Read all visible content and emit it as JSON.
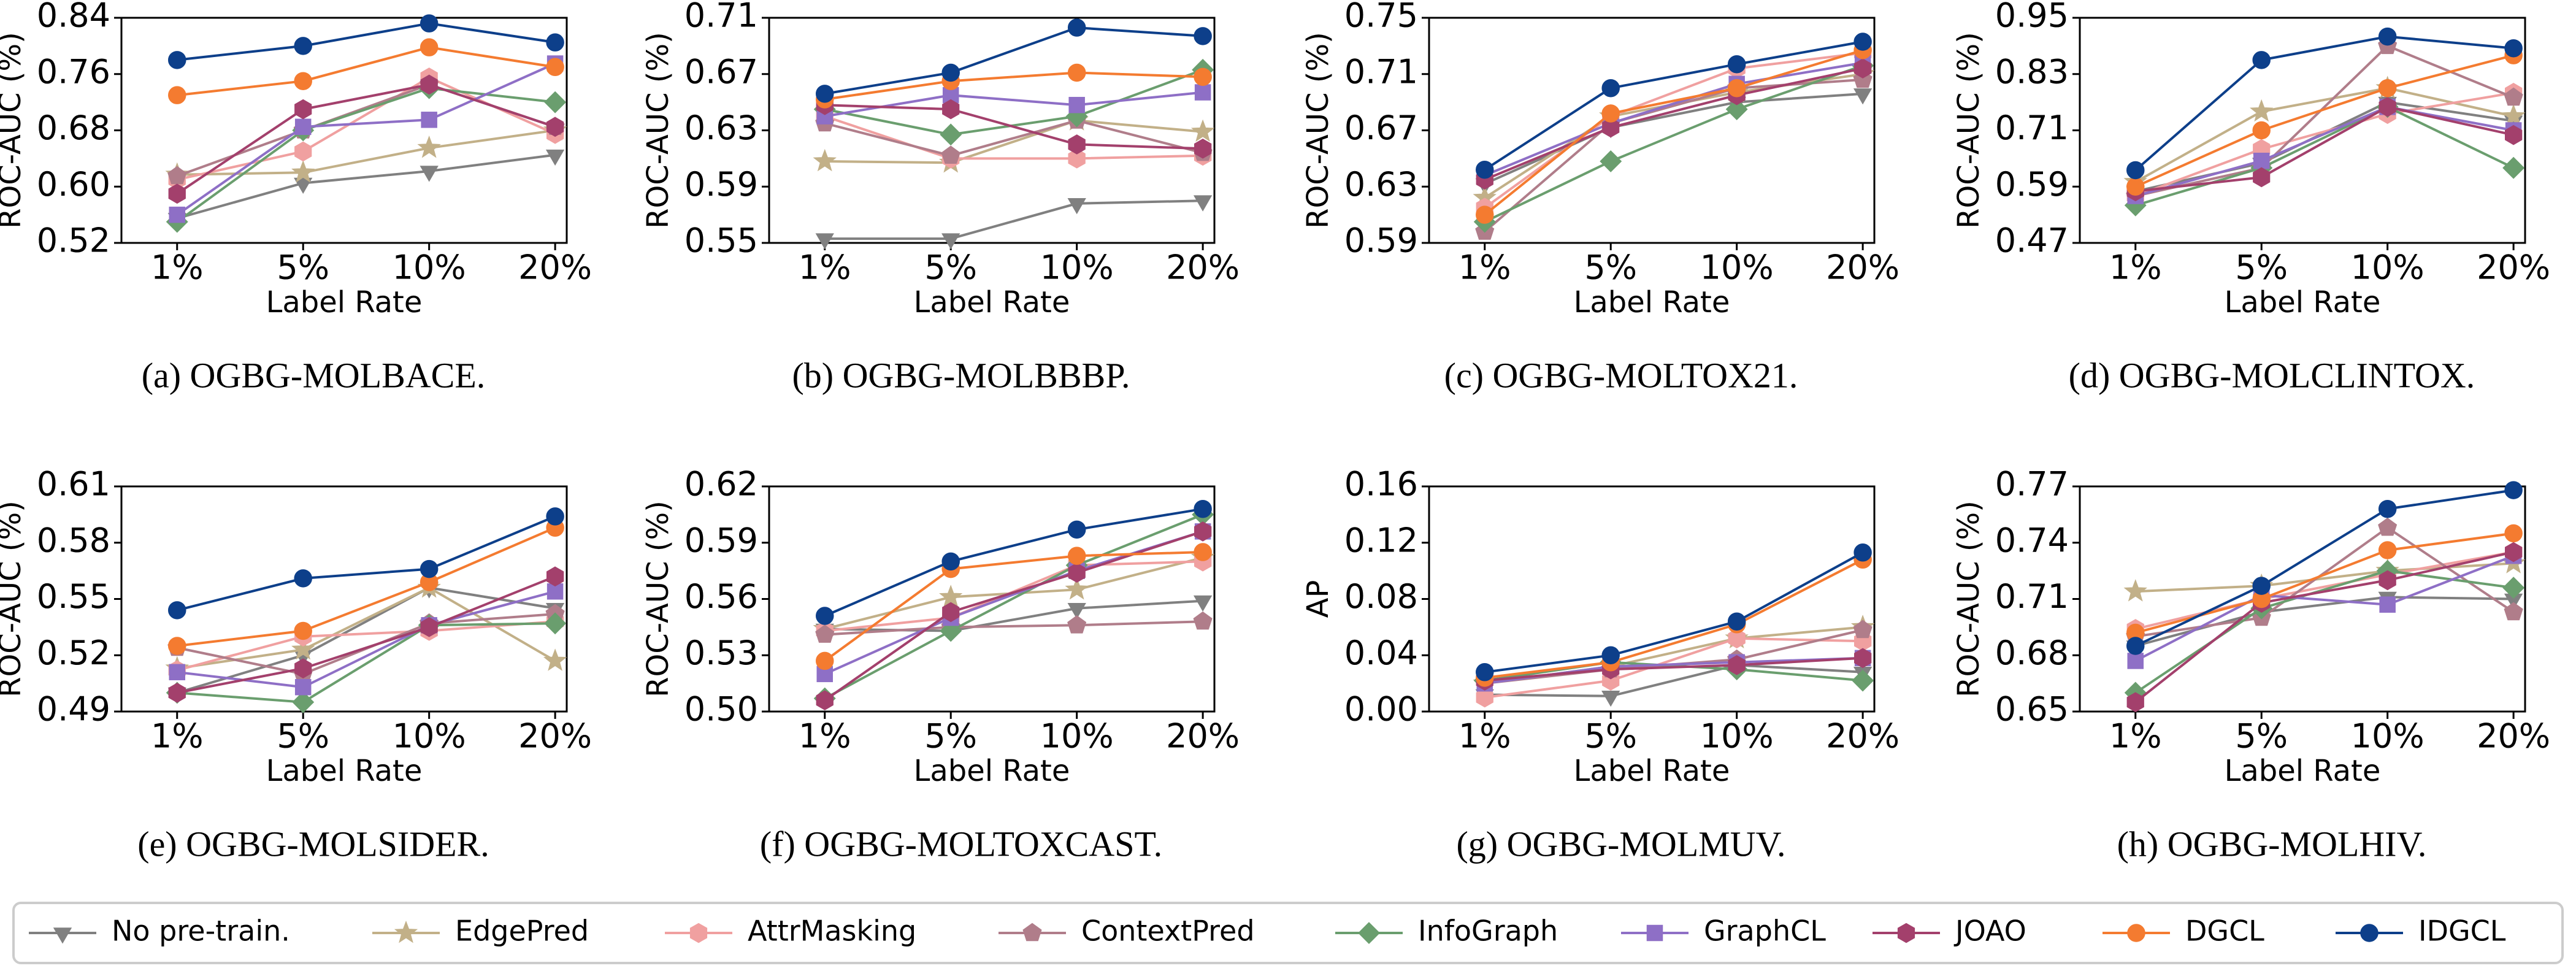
{
  "chart_data": [
    {
      "type": "line",
      "caption": "(a) OGBG-MOLBACE.",
      "x_label": "Label Rate",
      "y_label": "ROC-AUC (%)",
      "categories": [
        "1%",
        "5%",
        "10%",
        "20%"
      ],
      "ylim": [
        0.52,
        0.84
      ],
      "yticks": [
        0.52,
        {
          "value": 0.6,
          "label": "0.60"
        },
        0.68,
        0.76,
        0.84
      ],
      "series": [
        {
          "name": "No pre-train.",
          "color": "#808080",
          "marker": "triangle-down",
          "values": [
            0.555,
            0.605,
            0.622,
            0.645
          ]
        },
        {
          "name": "EdgePred",
          "color": "#c2b088",
          "marker": "star",
          "values": [
            0.617,
            0.62,
            0.655,
            0.68
          ]
        },
        {
          "name": "AttrMasking",
          "color": "#f0a0a0",
          "marker": "hexagon",
          "values": [
            0.61,
            0.65,
            0.755,
            0.675
          ]
        },
        {
          "name": "ContextPred",
          "color": "#b07d8a",
          "marker": "pentagon",
          "values": [
            0.615,
            0.68,
            0.745,
            0.685
          ]
        },
        {
          "name": "InfoGraph",
          "color": "#6a9e6e",
          "marker": "diamond",
          "values": [
            0.55,
            0.68,
            0.74,
            0.72
          ]
        },
        {
          "name": "GraphCL",
          "color": "#8e6fc6",
          "marker": "square",
          "values": [
            0.56,
            0.685,
            0.695,
            0.775
          ]
        },
        {
          "name": "JOAO",
          "color": "#a3406c",
          "marker": "hexagon",
          "values": [
            0.59,
            0.71,
            0.745,
            0.685
          ]
        },
        {
          "name": "DGCL",
          "color": "#f47b30",
          "marker": "circle",
          "values": [
            0.73,
            0.75,
            0.798,
            0.77
          ]
        },
        {
          "name": "IDGCL",
          "color": "#0d3f8a",
          "marker": "circle",
          "values": [
            0.78,
            0.8,
            0.832,
            0.805
          ]
        }
      ]
    },
    {
      "type": "line",
      "caption": "(b) OGBG-MOLBBBP.",
      "x_label": "Label Rate",
      "y_label": "ROC-AUC (%)",
      "categories": [
        "1%",
        "5%",
        "10%",
        "20%"
      ],
      "ylim": [
        0.55,
        0.71
      ],
      "yticks": [
        0.55,
        0.59,
        0.63,
        0.67,
        0.71
      ],
      "series": [
        {
          "name": "No pre-train.",
          "color": "#808080",
          "marker": "triangle-down",
          "values": [
            0.553,
            0.553,
            0.578,
            0.58
          ]
        },
        {
          "name": "EdgePred",
          "color": "#c2b088",
          "marker": "star",
          "values": [
            0.608,
            0.607,
            0.637,
            0.629
          ]
        },
        {
          "name": "AttrMasking",
          "color": "#f0a0a0",
          "marker": "hexagon",
          "values": [
            0.64,
            0.61,
            0.61,
            0.612
          ]
        },
        {
          "name": "ContextPred",
          "color": "#b07d8a",
          "marker": "pentagon",
          "values": [
            0.635,
            0.612,
            0.637,
            0.614
          ]
        },
        {
          "name": "InfoGraph",
          "color": "#6a9e6e",
          "marker": "diamond",
          "values": [
            0.645,
            0.627,
            0.64,
            0.673
          ]
        },
        {
          "name": "GraphCL",
          "color": "#8e6fc6",
          "marker": "square",
          "values": [
            0.64,
            0.655,
            0.648,
            0.657
          ]
        },
        {
          "name": "JOAO",
          "color": "#a3406c",
          "marker": "hexagon",
          "values": [
            0.648,
            0.645,
            0.62,
            0.617
          ]
        },
        {
          "name": "DGCL",
          "color": "#f47b30",
          "marker": "circle",
          "values": [
            0.652,
            0.665,
            0.671,
            0.668
          ]
        },
        {
          "name": "IDGCL",
          "color": "#0d3f8a",
          "marker": "circle",
          "values": [
            0.656,
            0.671,
            0.703,
            0.697
          ]
        }
      ]
    },
    {
      "type": "line",
      "caption": "(c) OGBG-MOLTOX21.",
      "x_label": "Label Rate",
      "y_label": "ROC-AUC (%)",
      "categories": [
        "1%",
        "5%",
        "10%",
        "20%"
      ],
      "ylim": [
        0.59,
        0.75
      ],
      "yticks": [
        0.59,
        0.63,
        0.67,
        0.71,
        0.75
      ],
      "series": [
        {
          "name": "No pre-train.",
          "color": "#808080",
          "marker": "triangle-down",
          "values": [
            0.632,
            0.672,
            0.69,
            0.696
          ]
        },
        {
          "name": "EdgePred",
          "color": "#c2b088",
          "marker": "star",
          "values": [
            0.622,
            0.68,
            0.697,
            0.71
          ]
        },
        {
          "name": "AttrMasking",
          "color": "#f0a0a0",
          "marker": "hexagon",
          "values": [
            0.615,
            0.68,
            0.714,
            0.725
          ]
        },
        {
          "name": "ContextPred",
          "color": "#b07d8a",
          "marker": "pentagon",
          "values": [
            0.598,
            0.675,
            0.7,
            0.706
          ]
        },
        {
          "name": "InfoGraph",
          "color": "#6a9e6e",
          "marker": "diamond",
          "values": [
            0.605,
            0.648,
            0.685,
            0.716
          ]
        },
        {
          "name": "GraphCL",
          "color": "#8e6fc6",
          "marker": "square",
          "values": [
            0.638,
            0.675,
            0.703,
            0.718
          ]
        },
        {
          "name": "JOAO",
          "color": "#a3406c",
          "marker": "hexagon",
          "values": [
            0.635,
            0.672,
            0.695,
            0.714
          ]
        },
        {
          "name": "DGCL",
          "color": "#f47b30",
          "marker": "circle",
          "values": [
            0.61,
            0.682,
            0.7,
            0.727
          ]
        },
        {
          "name": "IDGCL",
          "color": "#0d3f8a",
          "marker": "circle",
          "values": [
            0.642,
            0.7,
            0.717,
            0.733
          ]
        }
      ]
    },
    {
      "type": "line",
      "caption": "(d) OGBG-MOLCLINTOX.",
      "x_label": "Label Rate",
      "y_label": "ROC-AUC (%)",
      "categories": [
        "1%",
        "5%",
        "10%",
        "20%"
      ],
      "ylim": [
        0.47,
        0.95
      ],
      "yticks": [
        0.47,
        0.59,
        0.71,
        0.83,
        0.95
      ],
      "series": [
        {
          "name": "No pre-train.",
          "color": "#808080",
          "marker": "triangle-down",
          "values": [
            0.58,
            0.64,
            0.77,
            0.73
          ]
        },
        {
          "name": "EdgePred",
          "color": "#c2b088",
          "marker": "star",
          "values": [
            0.6,
            0.75,
            0.8,
            0.74
          ]
        },
        {
          "name": "AttrMasking",
          "color": "#f0a0a0",
          "marker": "hexagon",
          "values": [
            0.57,
            0.67,
            0.745,
            0.79
          ]
        },
        {
          "name": "ContextPred",
          "color": "#b07d8a",
          "marker": "pentagon",
          "values": [
            0.57,
            0.63,
            0.89,
            0.78
          ]
        },
        {
          "name": "InfoGraph",
          "color": "#6a9e6e",
          "marker": "diamond",
          "values": [
            0.55,
            0.63,
            0.76,
            0.63
          ]
        },
        {
          "name": "GraphCL",
          "color": "#8e6fc6",
          "marker": "square",
          "values": [
            0.57,
            0.645,
            0.76,
            0.71
          ]
        },
        {
          "name": "JOAO",
          "color": "#a3406c",
          "marker": "hexagon",
          "values": [
            0.58,
            0.61,
            0.76,
            0.7
          ]
        },
        {
          "name": "DGCL",
          "color": "#f47b30",
          "marker": "circle",
          "values": [
            0.59,
            0.71,
            0.8,
            0.87
          ]
        },
        {
          "name": "IDGCL",
          "color": "#0d3f8a",
          "marker": "circle",
          "values": [
            0.625,
            0.86,
            0.91,
            0.885
          ]
        }
      ]
    },
    {
      "type": "line",
      "caption": "(e) OGBG-MOLSIDER.",
      "x_label": "Label Rate",
      "y_label": "ROC-AUC (%)",
      "categories": [
        "1%",
        "5%",
        "10%",
        "20%"
      ],
      "ylim": [
        0.49,
        0.61
      ],
      "yticks": [
        0.49,
        0.52,
        0.55,
        0.58,
        0.61
      ],
      "series": [
        {
          "name": "No pre-train.",
          "color": "#808080",
          "marker": "triangle-down",
          "values": [
            0.5,
            0.52,
            0.556,
            0.545
          ]
        },
        {
          "name": "EdgePred",
          "color": "#c2b088",
          "marker": "star",
          "values": [
            0.513,
            0.523,
            0.556,
            0.517
          ]
        },
        {
          "name": "AttrMasking",
          "color": "#f0a0a0",
          "marker": "hexagon",
          "values": [
            0.512,
            0.53,
            0.533,
            0.538
          ]
        },
        {
          "name": "ContextPred",
          "color": "#b07d8a",
          "marker": "pentagon",
          "values": [
            0.524,
            0.51,
            0.537,
            0.542
          ]
        },
        {
          "name": "InfoGraph",
          "color": "#6a9e6e",
          "marker": "diamond",
          "values": [
            0.5,
            0.495,
            0.536,
            0.537
          ]
        },
        {
          "name": "GraphCL",
          "color": "#8e6fc6",
          "marker": "square",
          "values": [
            0.511,
            0.503,
            0.536,
            0.554
          ]
        },
        {
          "name": "JOAO",
          "color": "#a3406c",
          "marker": "hexagon",
          "values": [
            0.5,
            0.513,
            0.535,
            0.562
          ]
        },
        {
          "name": "DGCL",
          "color": "#f47b30",
          "marker": "circle",
          "values": [
            0.525,
            0.533,
            0.559,
            0.588
          ]
        },
        {
          "name": "IDGCL",
          "color": "#0d3f8a",
          "marker": "circle",
          "values": [
            0.544,
            0.561,
            0.566,
            0.594
          ]
        }
      ]
    },
    {
      "type": "line",
      "caption": "(f) OGBG-MOLTOXCAST.",
      "x_label": "Label Rate",
      "y_label": "ROC-AUC (%)",
      "categories": [
        "1%",
        "5%",
        "10%",
        "20%"
      ],
      "ylim": [
        0.5,
        0.62
      ],
      "yticks": [
        {
          "value": 0.5,
          "label": "0.50"
        },
        0.53,
        0.56,
        0.59,
        0.62
      ],
      "series": [
        {
          "name": "No pre-train.",
          "color": "#808080",
          "marker": "triangle-down",
          "values": [
            0.544,
            0.543,
            0.555,
            0.559
          ]
        },
        {
          "name": "EdgePred",
          "color": "#c2b088",
          "marker": "star",
          "values": [
            0.544,
            0.561,
            0.565,
            0.582
          ]
        },
        {
          "name": "AttrMasking",
          "color": "#f0a0a0",
          "marker": "hexagon",
          "values": [
            0.543,
            0.55,
            0.578,
            0.58
          ]
        },
        {
          "name": "ContextPred",
          "color": "#b07d8a",
          "marker": "pentagon",
          "values": [
            0.541,
            0.545,
            0.546,
            0.548
          ]
        },
        {
          "name": "InfoGraph",
          "color": "#6a9e6e",
          "marker": "diamond",
          "values": [
            0.507,
            0.543,
            0.578,
            0.605
          ]
        },
        {
          "name": "GraphCL",
          "color": "#8e6fc6",
          "marker": "square",
          "values": [
            0.52,
            0.55,
            0.575,
            0.596
          ]
        },
        {
          "name": "JOAO",
          "color": "#a3406c",
          "marker": "hexagon",
          "values": [
            0.506,
            0.553,
            0.574,
            0.596
          ]
        },
        {
          "name": "DGCL",
          "color": "#f47b30",
          "marker": "circle",
          "values": [
            0.527,
            0.576,
            0.583,
            0.585
          ]
        },
        {
          "name": "IDGCL",
          "color": "#0d3f8a",
          "marker": "circle",
          "values": [
            0.551,
            0.58,
            0.597,
            0.608
          ]
        }
      ]
    },
    {
      "type": "line",
      "caption": "(g) OGBG-MOLMUV.",
      "x_label": "Label Rate",
      "y_label": "AP",
      "categories": [
        "1%",
        "5%",
        "10%",
        "20%"
      ],
      "ylim": [
        0,
        0.16
      ],
      "yticks": [
        {
          "value": 0,
          "label": "0.00"
        },
        0.04,
        0.08,
        0.12,
        0.16
      ],
      "series": [
        {
          "name": "No pre-train.",
          "color": "#808080",
          "marker": "triangle-down",
          "values": [
            0.012,
            0.011,
            0.033,
            0.028
          ]
        },
        {
          "name": "EdgePred",
          "color": "#c2b088",
          "marker": "star",
          "values": [
            0.02,
            0.032,
            0.052,
            0.06
          ]
        },
        {
          "name": "AttrMasking",
          "color": "#f0a0a0",
          "marker": "hexagon",
          "values": [
            0.01,
            0.022,
            0.052,
            0.05
          ]
        },
        {
          "name": "ContextPred",
          "color": "#b07d8a",
          "marker": "pentagon",
          "values": [
            0.02,
            0.03,
            0.037,
            0.058
          ]
        },
        {
          "name": "InfoGraph",
          "color": "#6a9e6e",
          "marker": "diamond",
          "values": [
            0.022,
            0.035,
            0.03,
            0.022
          ]
        },
        {
          "name": "GraphCL",
          "color": "#8e6fc6",
          "marker": "square",
          "values": [
            0.02,
            0.032,
            0.035,
            0.038
          ]
        },
        {
          "name": "JOAO",
          "color": "#a3406c",
          "marker": "hexagon",
          "values": [
            0.022,
            0.03,
            0.033,
            0.038
          ]
        },
        {
          "name": "DGCL",
          "color": "#f47b30",
          "marker": "circle",
          "values": [
            0.024,
            0.035,
            0.062,
            0.108
          ]
        },
        {
          "name": "IDGCL",
          "color": "#0d3f8a",
          "marker": "circle",
          "values": [
            0.028,
            0.04,
            0.064,
            0.113
          ]
        }
      ]
    },
    {
      "type": "line",
      "caption": "(h) OGBG-MOLHIV.",
      "x_label": "Label Rate",
      "y_label": "ROC-AUC (%)",
      "categories": [
        "1%",
        "5%",
        "10%",
        "20%"
      ],
      "ylim": [
        0.65,
        0.77
      ],
      "yticks": [
        0.65,
        0.68,
        0.71,
        0.74,
        0.77
      ],
      "series": [
        {
          "name": "No pre-train.",
          "color": "#808080",
          "marker": "triangle-down",
          "values": [
            0.685,
            0.703,
            0.711,
            0.71
          ]
        },
        {
          "name": "EdgePred",
          "color": "#c2b088",
          "marker": "star",
          "values": [
            0.714,
            0.717,
            0.725,
            0.729
          ]
        },
        {
          "name": "AttrMasking",
          "color": "#f0a0a0",
          "marker": "hexagon",
          "values": [
            0.694,
            0.71,
            0.723,
            0.735
          ]
        },
        {
          "name": "ContextPred",
          "color": "#b07d8a",
          "marker": "pentagon",
          "values": [
            0.69,
            0.7,
            0.748,
            0.703
          ]
        },
        {
          "name": "InfoGraph",
          "color": "#6a9e6e",
          "marker": "diamond",
          "values": [
            0.66,
            0.705,
            0.725,
            0.716
          ]
        },
        {
          "name": "GraphCL",
          "color": "#8e6fc6",
          "marker": "square",
          "values": [
            0.677,
            0.712,
            0.707,
            0.733
          ]
        },
        {
          "name": "JOAO",
          "color": "#a3406c",
          "marker": "hexagon",
          "values": [
            0.655,
            0.708,
            0.72,
            0.735
          ]
        },
        {
          "name": "DGCL",
          "color": "#f47b30",
          "marker": "circle",
          "values": [
            0.692,
            0.71,
            0.736,
            0.745
          ]
        },
        {
          "name": "IDGCL",
          "color": "#0d3f8a",
          "marker": "circle",
          "values": [
            0.685,
            0.717,
            0.758,
            0.768
          ]
        }
      ]
    }
  ]
}
